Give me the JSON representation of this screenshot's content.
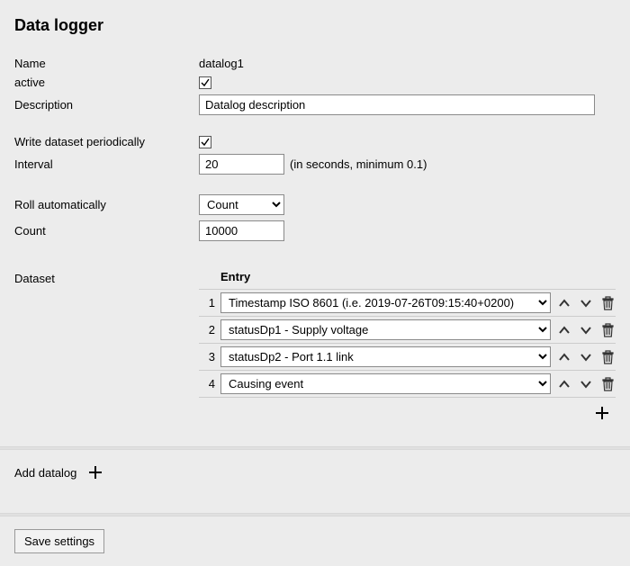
{
  "page_title": "Data logger",
  "labels": {
    "name": "Name",
    "active": "active",
    "description": "Description",
    "write_periodically": "Write dataset periodically",
    "interval": "Interval",
    "interval_hint": "(in seconds, minimum 0.1)",
    "roll_auto": "Roll automatically",
    "count": "Count",
    "dataset": "Dataset",
    "entry_header": "Entry",
    "add_datalog": "Add datalog",
    "save": "Save settings"
  },
  "values": {
    "name": "datalog1",
    "active_checked": true,
    "description": "Datalog description",
    "write_periodically_checked": true,
    "interval": "20",
    "roll_auto": "Count",
    "count": "10000"
  },
  "entries": [
    {
      "num": "1",
      "value": "Timestamp ISO 8601 (i.e. 2019-07-26T09:15:40+0200)"
    },
    {
      "num": "2",
      "value": "statusDp1 - Supply voltage"
    },
    {
      "num": "3",
      "value": "statusDp2 - Port 1.1 link"
    },
    {
      "num": "4",
      "value": "Causing event"
    }
  ],
  "colors": {
    "page_bg": "#ececec",
    "input_border": "#8a8a8a",
    "divider": "#cccccc",
    "icon": "#333333"
  }
}
